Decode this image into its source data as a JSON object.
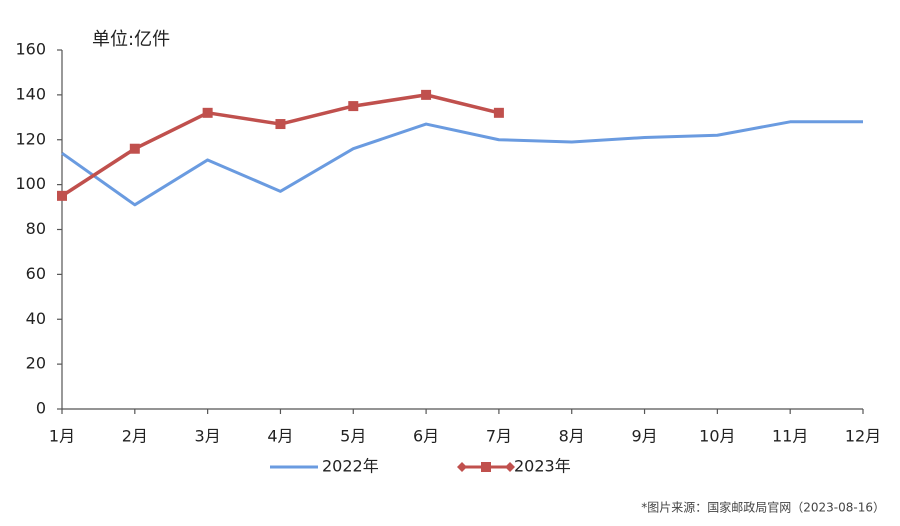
{
  "chart_data": {
    "type": "line",
    "subtitle": "单位:亿件",
    "categories": [
      "1月",
      "2月",
      "3月",
      "4月",
      "5月",
      "6月",
      "7月",
      "8月",
      "9月",
      "10月",
      "11月",
      "12月"
    ],
    "series": [
      {
        "name": "2022年",
        "color": "#6a9be0",
        "values": [
          114,
          91,
          111,
          97,
          116,
          127,
          120,
          119,
          121,
          122,
          128,
          128
        ]
      },
      {
        "name": "2023年",
        "color": "#c0504d",
        "values": [
          95,
          116,
          132,
          127,
          135,
          140,
          132,
          null,
          null,
          null,
          null,
          null
        ]
      }
    ],
    "ylim": [
      0,
      160
    ],
    "yticks": [
      0,
      20,
      40,
      60,
      80,
      100,
      120,
      140,
      160
    ],
    "grid": false,
    "source": "*图片来源：国家邮政局官网（2023-08-16）"
  }
}
